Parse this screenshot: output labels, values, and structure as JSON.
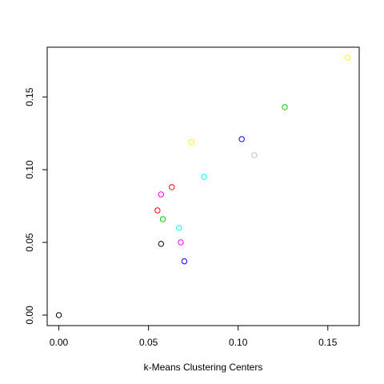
{
  "chart_data": {
    "type": "scatter",
    "title": "",
    "xlabel": "k-Means Clustering Centers",
    "ylabel": "",
    "xlim": [
      -0.0065,
      0.1675
    ],
    "ylim": [
      -0.0072,
      0.1842
    ],
    "x_ticks": [
      "0.00",
      "0.05",
      "0.10",
      "0.15"
    ],
    "y_ticks": [
      "0.00",
      "0.05",
      "0.10",
      "0.15"
    ],
    "grid": false,
    "legend": "none",
    "points": [
      {
        "x": 0.0,
        "y": 0.0,
        "color": "#000000"
      },
      {
        "x": 0.057,
        "y": 0.049,
        "color": "#000000"
      },
      {
        "x": 0.055,
        "y": 0.072,
        "color": "#ff0000"
      },
      {
        "x": 0.063,
        "y": 0.088,
        "color": "#ff0000"
      },
      {
        "x": 0.058,
        "y": 0.066,
        "color": "#00cd00"
      },
      {
        "x": 0.126,
        "y": 0.143,
        "color": "#00cd00"
      },
      {
        "x": 0.07,
        "y": 0.037,
        "color": "#0000ff"
      },
      {
        "x": 0.102,
        "y": 0.121,
        "color": "#0000ff"
      },
      {
        "x": 0.067,
        "y": 0.06,
        "color": "#00ffff"
      },
      {
        "x": 0.081,
        "y": 0.095,
        "color": "#00ffff"
      },
      {
        "x": 0.057,
        "y": 0.083,
        "color": "#ff00ff"
      },
      {
        "x": 0.068,
        "y": 0.05,
        "color": "#ff00ff"
      },
      {
        "x": 0.074,
        "y": 0.119,
        "color": "#ffff00"
      },
      {
        "x": 0.161,
        "y": 0.177,
        "color": "#ffff00"
      },
      {
        "x": 0.109,
        "y": 0.11,
        "color": "#bebebe"
      }
    ]
  }
}
